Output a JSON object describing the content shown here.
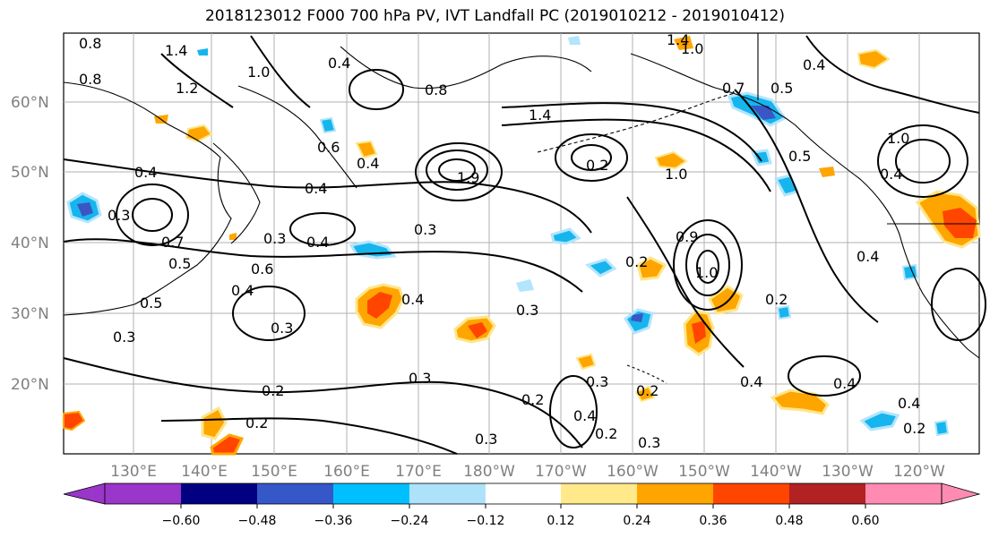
{
  "title": "2018123012 F000 700 hPa PV, IVT Landfall PC (2019010212 - 2019010412)",
  "map": {
    "lat_labels": [
      "60°N",
      "50°N",
      "40°N",
      "30°N",
      "20°N"
    ],
    "lon_labels": [
      "130°E",
      "140°E",
      "150°E",
      "160°E",
      "170°E",
      "180°W",
      "170°W",
      "160°W",
      "150°W",
      "140°W",
      "130°W",
      "120°W"
    ],
    "contour_labels": [
      "0.8",
      "1.4",
      "1.2",
      "0.8",
      "1.0",
      "0.4",
      "0.8",
      "1.4",
      "1.0",
      "1.4",
      "1.0",
      "0.7",
      "0.5",
      "0.4",
      "0.6",
      "0.4",
      "0.4",
      "0.4",
      "1.9",
      "0.2",
      "1.0",
      "0.5",
      "0.4",
      "0.3",
      "0.4",
      "0.7",
      "0.3",
      "0.3",
      "0.4",
      "0.5",
      "0.6",
      "0.4",
      "0.3",
      "0.5",
      "0.3",
      "0.3",
      "0.4",
      "0.2",
      "1.0",
      "0.9",
      "0.2",
      "0.4",
      "0.3",
      "0.2",
      "0.2",
      "0.2",
      "0.3",
      "0.2",
      "0.3",
      "0.2",
      "0.4",
      "0.4",
      "0.4",
      "0.2",
      "0.3"
    ],
    "colors": {
      "ocean": "#ffffff",
      "grid": "#b0b0b0",
      "positive_light": "#fde68a",
      "positive_mid": "#fb9f00",
      "positive_strong": "#ff4a00",
      "negative_light": "#b3e5fc",
      "negative_mid": "#16b5ee",
      "negative_strong": "#3b56c4"
    }
  },
  "colorbar": {
    "ticks": [
      "−0.60",
      "−0.48",
      "−0.36",
      "−0.24",
      "−0.12",
      "0.12",
      "0.24",
      "0.36",
      "0.48",
      "0.60"
    ],
    "colors": [
      "#9a36c9",
      "#000080",
      "#3657c8",
      "#00bfff",
      "#aee2fb",
      "#ffffff",
      "#ffe98a",
      "#ffa500",
      "#ff4500",
      "#b22222",
      "#ff8bb2",
      "#ffffff"
    ]
  }
}
